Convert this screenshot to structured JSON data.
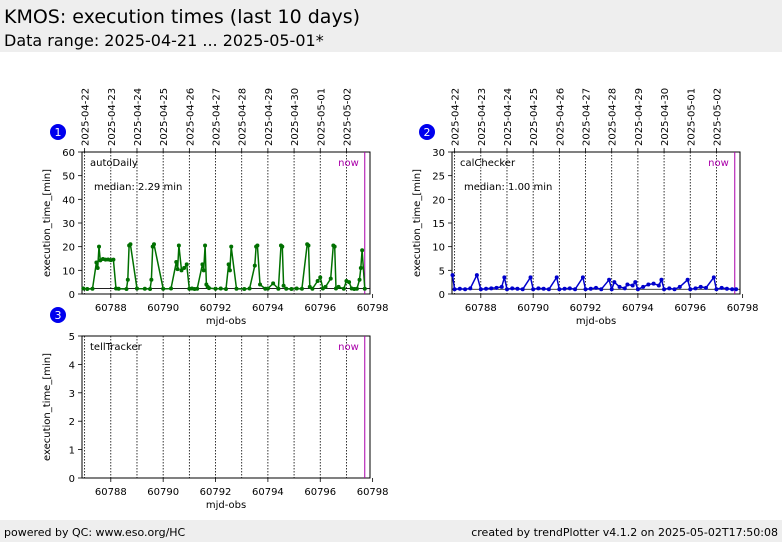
{
  "header": {
    "title": "KMOS: execution times (last 10 days)",
    "subtitle": "Data range: 2025-04-21 ... 2025-05-01*"
  },
  "footer": {
    "left": "powered by QC: www.eso.org/HC",
    "right": "created by trendPlotter v4.1.2 on 2025-05-02T17:50:08"
  },
  "colors": {
    "series1": "#007000",
    "series2": "#0000cc",
    "now": "#aa00aa",
    "badge": "#0000ee"
  },
  "chart_data": [
    {
      "type": "line",
      "badge": "1",
      "name": "autoDaily",
      "median_label": "median: 2.29 min",
      "now_label": "now",
      "now_x": 60797.7,
      "median": 2.29,
      "xlabel": "mjd-obs",
      "ylabel": "execution_time_[min]",
      "xlim": [
        60786.9,
        60797.9
      ],
      "ylim": [
        0,
        60
      ],
      "xticks": [
        60788,
        60790,
        60792,
        60794,
        60796,
        60798
      ],
      "yticks": [
        0,
        10,
        20,
        30,
        40,
        50,
        60
      ],
      "date_ticks": [
        {
          "x": 60787.0,
          "label": "2025-04-22"
        },
        {
          "x": 60788.0,
          "label": "2025-04-23"
        },
        {
          "x": 60789.0,
          "label": "2025-04-24"
        },
        {
          "x": 60790.0,
          "label": "2025-04-25"
        },
        {
          "x": 60791.0,
          "label": "2025-04-26"
        },
        {
          "x": 60792.0,
          "label": "2025-04-27"
        },
        {
          "x": 60793.0,
          "label": "2025-04-28"
        },
        {
          "x": 60794.0,
          "label": "2025-04-29"
        },
        {
          "x": 60795.0,
          "label": "2025-04-30"
        },
        {
          "x": 60796.0,
          "label": "2025-05-01"
        },
        {
          "x": 60797.0,
          "label": "2025-05-02"
        }
      ],
      "x": [
        60786.95,
        60787.1,
        60787.3,
        60787.45,
        60787.5,
        60787.55,
        60787.6,
        60787.7,
        60787.8,
        60787.9,
        60788.0,
        60788.1,
        60788.2,
        60788.3,
        60788.6,
        60788.65,
        60788.7,
        60788.75,
        60789.0,
        60789.3,
        60789.5,
        60789.55,
        60789.6,
        60789.65,
        60790.0,
        60790.3,
        60790.5,
        60790.55,
        60790.6,
        60790.7,
        60790.8,
        60790.9,
        60791.0,
        60791.1,
        60791.2,
        60791.3,
        60791.5,
        60791.55,
        60791.6,
        60791.65,
        60791.7,
        60791.75,
        60792.0,
        60792.2,
        60792.4,
        60792.5,
        60792.55,
        60792.6,
        60792.8,
        60793.1,
        60793.3,
        60793.5,
        60793.55,
        60793.6,
        60793.7,
        60793.9,
        60794.0,
        60794.2,
        60794.4,
        60794.5,
        60794.55,
        60794.6,
        60794.7,
        60794.9,
        60795.1,
        60795.3,
        60795.5,
        60795.55,
        60795.6,
        60795.7,
        60795.9,
        60796.0,
        60796.1,
        60796.2,
        60796.4,
        60796.5,
        60796.55,
        60796.6,
        60796.7,
        60796.9,
        60797.0,
        60797.1,
        60797.2,
        60797.3,
        60797.4,
        60797.5,
        60797.55,
        60797.6,
        60797.7
      ],
      "y": [
        2.3,
        2.1,
        2.2,
        13.3,
        11.0,
        20.0,
        14.2,
        14.8,
        14.5,
        14.6,
        14.3,
        14.5,
        2.3,
        2.2,
        2.1,
        6.0,
        20.5,
        21.0,
        2.3,
        2.2,
        2.1,
        6.0,
        20.0,
        21.0,
        2.2,
        2.3,
        13.5,
        10.5,
        20.5,
        10.0,
        11.0,
        12.5,
        2.2,
        2.3,
        2.1,
        2.2,
        12.5,
        10.0,
        20.5,
        4.0,
        3.0,
        2.5,
        2.2,
        2.3,
        2.1,
        12.5,
        10.0,
        20.0,
        2.2,
        2.1,
        2.3,
        12.0,
        20.0,
        20.5,
        4.0,
        2.2,
        2.3,
        4.5,
        2.2,
        20.5,
        20.0,
        3.5,
        2.2,
        2.1,
        2.3,
        2.2,
        21.0,
        20.5,
        3.0,
        2.2,
        5.5,
        7.0,
        2.3,
        3.0,
        6.5,
        20.5,
        20.0,
        2.3,
        3.0,
        2.2,
        5.5,
        5.0,
        2.3,
        2.1,
        2.2,
        6.0,
        11.0,
        18.5,
        2.2
      ]
    },
    {
      "type": "line",
      "badge": "2",
      "name": "calChecker",
      "median_label": "median: 1.00 min",
      "now_label": "now",
      "now_x": 60797.7,
      "median": 1.0,
      "xlabel": "mjd-obs",
      "ylabel": "execution_time_[min]",
      "xlim": [
        60786.9,
        60797.9
      ],
      "ylim": [
        0,
        30
      ],
      "xticks": [
        60788,
        60790,
        60792,
        60794,
        60796,
        60798
      ],
      "yticks": [
        0,
        5,
        10,
        15,
        20,
        25,
        30
      ],
      "date_ticks": [
        {
          "x": 60787.0,
          "label": "2025-04-22"
        },
        {
          "x": 60788.0,
          "label": "2025-04-23"
        },
        {
          "x": 60789.0,
          "label": "2025-04-24"
        },
        {
          "x": 60790.0,
          "label": "2025-04-25"
        },
        {
          "x": 60791.0,
          "label": "2025-04-26"
        },
        {
          "x": 60792.0,
          "label": "2025-04-27"
        },
        {
          "x": 60793.0,
          "label": "2025-04-28"
        },
        {
          "x": 60794.0,
          "label": "2025-04-29"
        },
        {
          "x": 60795.0,
          "label": "2025-04-30"
        },
        {
          "x": 60796.0,
          "label": "2025-05-01"
        },
        {
          "x": 60797.0,
          "label": "2025-05-02"
        }
      ],
      "x": [
        60786.92,
        60787.0,
        60787.2,
        60787.4,
        60787.6,
        60787.85,
        60788.0,
        60788.2,
        60788.4,
        60788.6,
        60788.8,
        60788.9,
        60789.0,
        60789.2,
        60789.4,
        60789.6,
        60789.9,
        60790.0,
        60790.2,
        60790.4,
        60790.6,
        60790.9,
        60791.0,
        60791.2,
        60791.4,
        60791.6,
        60791.9,
        60792.0,
        60792.2,
        60792.4,
        60792.6,
        60792.9,
        60793.0,
        60793.1,
        60793.3,
        60793.5,
        60793.6,
        60793.8,
        60793.9,
        60794.0,
        60794.2,
        60794.4,
        60794.6,
        60794.8,
        60794.9,
        60795.0,
        60795.2,
        60795.4,
        60795.6,
        60795.9,
        60796.0,
        60796.2,
        60796.4,
        60796.6,
        60796.9,
        60797.0,
        60797.2,
        60797.4,
        60797.6,
        60797.75
      ],
      "y": [
        4.0,
        1.0,
        1.1,
        1.0,
        1.2,
        4.0,
        1.0,
        1.1,
        1.2,
        1.3,
        1.5,
        3.5,
        1.0,
        1.2,
        1.1,
        1.0,
        3.5,
        1.0,
        1.2,
        1.1,
        1.0,
        3.5,
        1.0,
        1.1,
        1.2,
        1.0,
        3.5,
        1.0,
        1.1,
        1.3,
        1.0,
        3.0,
        1.0,
        2.5,
        1.5,
        1.2,
        2.0,
        1.8,
        2.5,
        1.0,
        1.5,
        2.0,
        2.2,
        1.8,
        3.0,
        1.0,
        1.2,
        1.0,
        1.5,
        3.0,
        1.0,
        1.2,
        1.5,
        1.3,
        3.5,
        1.0,
        1.3,
        1.1,
        1.0,
        1.0
      ]
    },
    {
      "type": "line",
      "badge": "3",
      "name": "tellTracker",
      "now_label": "now",
      "now_x": 60797.7,
      "xlabel": "mjd-obs",
      "ylabel": "execution_time_[min]",
      "xlim": [
        60786.9,
        60797.9
      ],
      "ylim": [
        0,
        5
      ],
      "xticks": [
        60788,
        60790,
        60792,
        60794,
        60796,
        60798
      ],
      "yticks": [
        0,
        1,
        2,
        3,
        4,
        5
      ],
      "date_ticks": [
        {
          "x": 60787.0
        },
        {
          "x": 60788.0
        },
        {
          "x": 60789.0
        },
        {
          "x": 60790.0
        },
        {
          "x": 60791.0
        },
        {
          "x": 60792.0
        },
        {
          "x": 60793.0
        },
        {
          "x": 60794.0
        },
        {
          "x": 60795.0
        },
        {
          "x": 60796.0
        },
        {
          "x": 60797.0
        }
      ],
      "x": [],
      "y": []
    }
  ]
}
